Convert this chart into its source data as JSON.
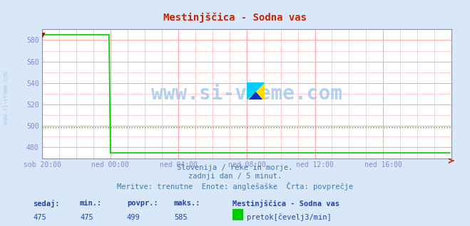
{
  "title": "Mestinjščica - Sodna vas",
  "bg_color": "#d8e8f8",
  "plot_bg_color": "#ffffff",
  "grid_color_major": "#ffaaaa",
  "line_color": "#00cc00",
  "avg_line_color": "#00bb00",
  "avg_value": 499,
  "x_labels": [
    "sob 20:00",
    "ned 00:00",
    "ned 04:00",
    "ned 08:00",
    "ned 12:00",
    "ned 16:00"
  ],
  "x_ticks": [
    0,
    240,
    480,
    720,
    960,
    1200
  ],
  "total_minutes": 1440,
  "ylim_min": 470,
  "ylim_max": 590,
  "yticks": [
    480,
    500,
    520,
    540,
    560,
    580
  ],
  "watermark": "www.si-vreme.com",
  "watermark_color": "#aaccee",
  "side_text": "www.si-vreme.com",
  "footer_line1": "Slovenija / reke in morje.",
  "footer_line2": "zadnji dan / 5 minut.",
  "footer_line3": "Meritve: trenutne  Enote: anglešaške  Črta: povprečje",
  "footer_color": "#4477aa",
  "bottom_labels": [
    "sedaj:",
    "min.:",
    "povpr.:",
    "maks.:"
  ],
  "bottom_values": [
    "475",
    "475",
    "499",
    "585"
  ],
  "bottom_station": "Mestinjščica - Sodna vas",
  "bottom_legend": "pretok[čevelj3/min]",
  "legend_color": "#00cc00",
  "axis_color": "#8888cc",
  "tick_color": "#8888cc",
  "spike_end": 240,
  "spike_value": 585,
  "flat_value": 475
}
